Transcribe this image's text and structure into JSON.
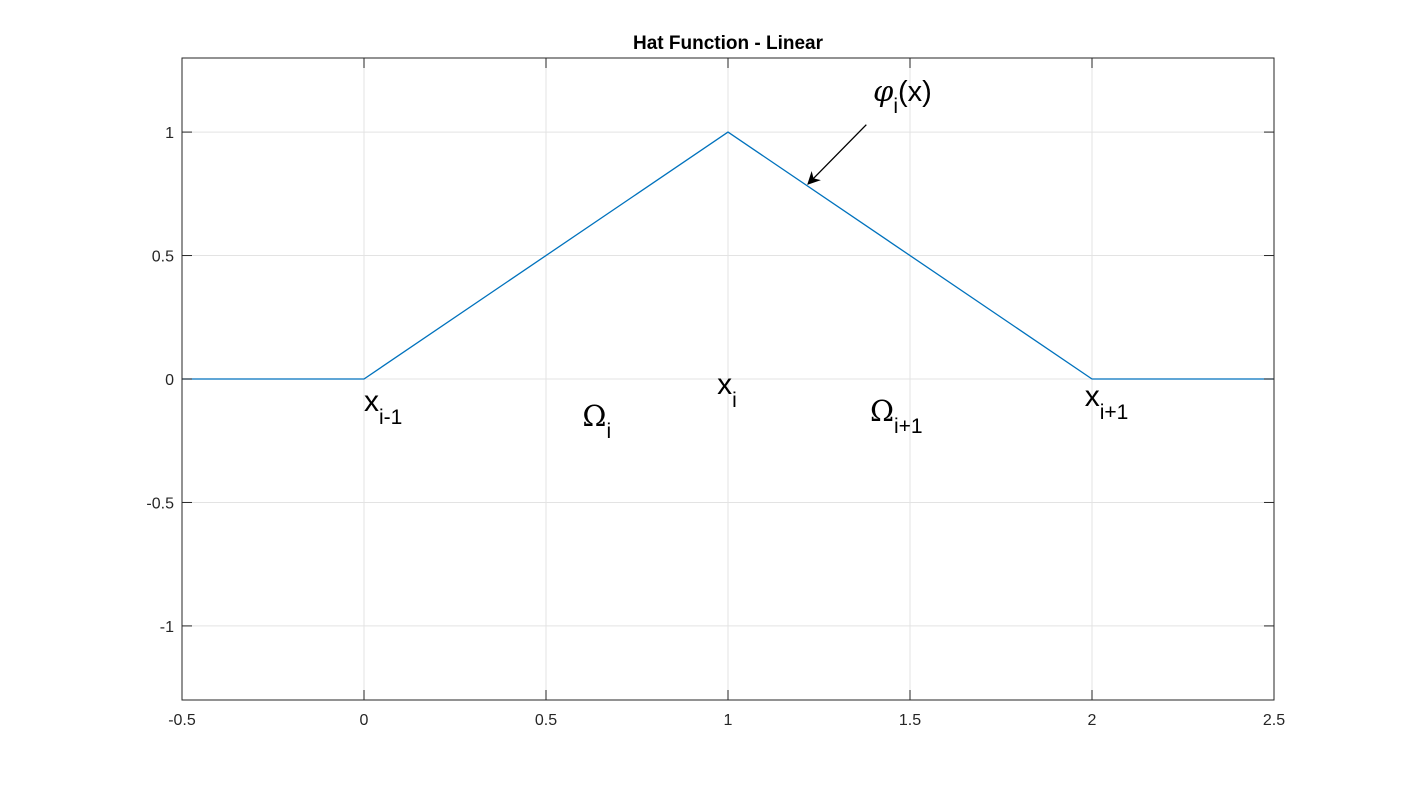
{
  "chart_data": {
    "type": "line",
    "title": "Hat Function - Linear",
    "xlim": [
      -0.5,
      2.5
    ],
    "ylim": [
      -1.3,
      1.3
    ],
    "grid": true,
    "x_ticks": [
      {
        "value": -0.5,
        "label": "-0.5"
      },
      {
        "value": 0,
        "label": "0"
      },
      {
        "value": 0.5,
        "label": "0.5"
      },
      {
        "value": 1,
        "label": "1"
      },
      {
        "value": 1.5,
        "label": "1.5"
      },
      {
        "value": 2,
        "label": "2"
      },
      {
        "value": 2.5,
        "label": "2.5"
      }
    ],
    "y_ticks": [
      {
        "value": -1,
        "label": "-1"
      },
      {
        "value": -0.5,
        "label": "-0.5"
      },
      {
        "value": 0,
        "label": "0"
      },
      {
        "value": 0.5,
        "label": "0.5"
      },
      {
        "value": 1,
        "label": "1"
      }
    ],
    "series": [
      {
        "color": "#0072BD",
        "x": [
          -0.5,
          0,
          1,
          2,
          2.5
        ],
        "y": [
          0,
          0,
          1,
          0,
          0
        ]
      }
    ],
    "annotations": {
      "phi": {
        "base": "φ",
        "sub": "i",
        "suffix": "(x)"
      },
      "arrow": {
        "from": [
          1.38,
          1.03
        ],
        "to": [
          1.22,
          0.79
        ]
      },
      "node_labels": [
        {
          "base": "x",
          "sub": "i-1",
          "at": [
            0,
            -0.13
          ]
        },
        {
          "base": "x",
          "sub": "i",
          "at": [
            0.97,
            -0.06
          ]
        },
        {
          "base": "x",
          "sub": "i+1",
          "at": [
            1.98,
            -0.11
          ]
        }
      ],
      "element_labels": [
        {
          "base": "Ω",
          "sub": "i",
          "at": [
            0.6,
            -0.19
          ]
        },
        {
          "base": "Ω",
          "sub": "i+1",
          "at": [
            1.39,
            -0.17
          ]
        }
      ]
    }
  }
}
